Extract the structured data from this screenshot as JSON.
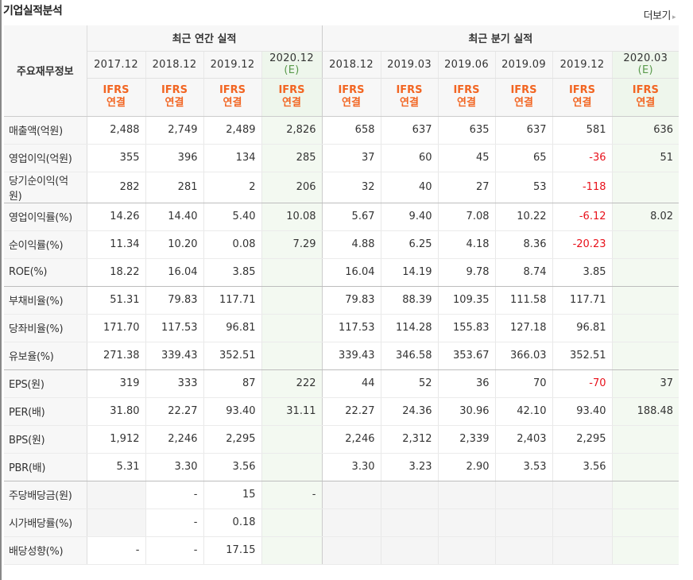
{
  "header": {
    "title": "기업실적분석",
    "more_label": "더보기",
    "more_arrow": "▸"
  },
  "table": {
    "row_header_label": "주요재무정보",
    "annual_group_label": "최근 연간 실적",
    "quarter_group_label": "최근 분기 실적",
    "annual_periods": [
      "2017.12",
      "2018.12",
      "2019.12",
      "2020.12"
    ],
    "annual_est_suffix": "(E)",
    "quarter_periods": [
      "2018.12",
      "2019.03",
      "2019.06",
      "2019.09",
      "2019.12",
      "2020.03"
    ],
    "quarter_est_suffix": "(E)",
    "ifrs_line1": "IFRS",
    "ifrs_line2": "연결",
    "rows": [
      {
        "label": "매출액(억원)",
        "cells": [
          "2,488",
          "2,749",
          "2,489",
          "2,826",
          "658",
          "637",
          "635",
          "637",
          "581",
          "636"
        ]
      },
      {
        "label": "영업이익(억원)",
        "cells": [
          "355",
          "396",
          "134",
          "285",
          "37",
          "60",
          "45",
          "65",
          "-36",
          "51"
        ]
      },
      {
        "label": "당기순이익(억원)",
        "cells": [
          "282",
          "281",
          "2",
          "206",
          "32",
          "40",
          "27",
          "53",
          "-118",
          ""
        ]
      },
      {
        "label": "영업이익률(%)",
        "cells": [
          "14.26",
          "14.40",
          "5.40",
          "10.08",
          "5.67",
          "9.40",
          "7.08",
          "10.22",
          "-6.12",
          "8.02"
        ]
      },
      {
        "label": "순이익률(%)",
        "cells": [
          "11.34",
          "10.20",
          "0.08",
          "7.29",
          "4.88",
          "6.25",
          "4.18",
          "8.36",
          "-20.23",
          ""
        ]
      },
      {
        "label": "ROE(%)",
        "cells": [
          "18.22",
          "16.04",
          "3.85",
          "",
          "16.04",
          "14.19",
          "9.78",
          "8.74",
          "3.85",
          ""
        ]
      },
      {
        "label": "부채비율(%)",
        "cells": [
          "51.31",
          "79.83",
          "117.71",
          "",
          "79.83",
          "88.39",
          "109.35",
          "111.58",
          "117.71",
          ""
        ]
      },
      {
        "label": "당좌비율(%)",
        "cells": [
          "171.70",
          "117.53",
          "96.81",
          "",
          "117.53",
          "114.28",
          "155.83",
          "127.18",
          "96.81",
          ""
        ]
      },
      {
        "label": "유보율(%)",
        "cells": [
          "271.38",
          "339.43",
          "352.51",
          "",
          "339.43",
          "346.58",
          "353.67",
          "366.03",
          "352.51",
          ""
        ]
      },
      {
        "label": "EPS(원)",
        "cells": [
          "319",
          "333",
          "87",
          "222",
          "44",
          "52",
          "36",
          "70",
          "-70",
          "37"
        ]
      },
      {
        "label": "PER(배)",
        "cells": [
          "31.80",
          "22.27",
          "93.40",
          "31.11",
          "22.27",
          "24.36",
          "30.96",
          "42.10",
          "93.40",
          "188.48"
        ]
      },
      {
        "label": "BPS(원)",
        "cells": [
          "1,912",
          "2,246",
          "2,295",
          "",
          "2,246",
          "2,312",
          "2,339",
          "2,403",
          "2,295",
          ""
        ]
      },
      {
        "label": "PBR(배)",
        "cells": [
          "5.31",
          "3.30",
          "3.56",
          "",
          "3.30",
          "3.23",
          "2.90",
          "3.53",
          "3.56",
          ""
        ]
      },
      {
        "label": "주당배당금(원)",
        "cells": [
          "",
          "-",
          "15",
          "-",
          "",
          "",
          "",
          "",
          "",
          ""
        ]
      },
      {
        "label": "시가배당률(%)",
        "cells": [
          "",
          "-",
          "0.18",
          "",
          "",
          "",
          "",
          "",
          "",
          ""
        ]
      },
      {
        "label": "배당성향(%)",
        "cells": [
          "-",
          "-",
          "17.15",
          "",
          "",
          "",
          "",
          "",
          "",
          ""
        ]
      }
    ]
  },
  "colors": {
    "ifrs_orange": "#f26522",
    "negative_red": "#e8111b",
    "estimate_bg": "#f3f9f1",
    "header_bg": "#f7f7f7"
  }
}
